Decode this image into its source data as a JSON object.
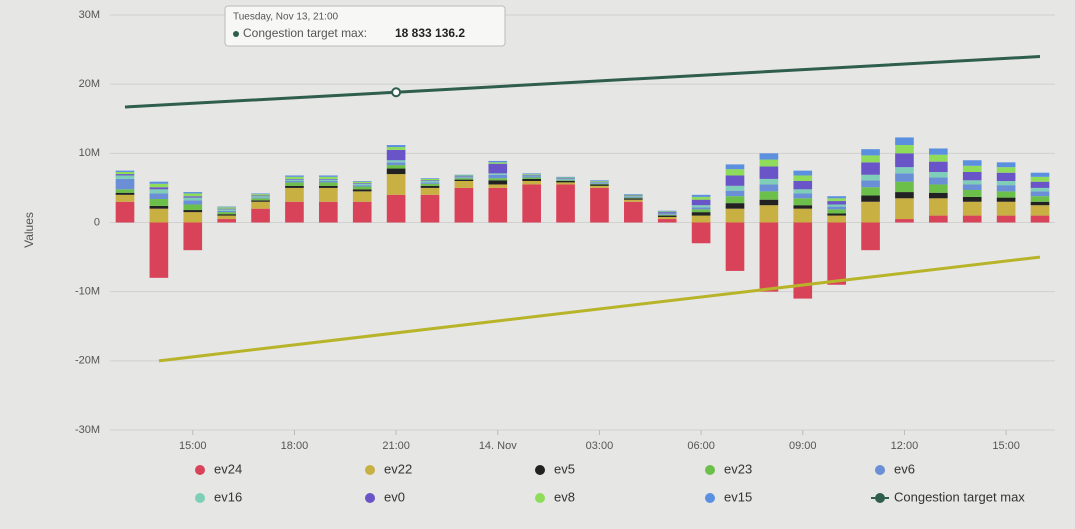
{
  "chart_data": {
    "type": "bar",
    "y_label": "Values",
    "x": [
      0,
      1,
      2,
      3,
      4,
      5,
      6,
      7,
      8,
      9,
      10,
      11,
      12,
      13,
      14,
      15,
      16,
      17,
      18,
      19,
      20,
      21,
      22,
      23,
      24,
      25,
      26,
      27
    ],
    "xlim": [
      0,
      27
    ],
    "xticks": [
      {
        "value": 2,
        "label": "15:00"
      },
      {
        "value": 5,
        "label": "18:00"
      },
      {
        "value": 8,
        "label": "21:00"
      },
      {
        "value": 11,
        "label": "14. Nov"
      },
      {
        "value": 14,
        "label": "03:00"
      },
      {
        "value": 17,
        "label": "06:00"
      },
      {
        "value": 20,
        "label": "09:00"
      },
      {
        "value": 23,
        "label": "12:00"
      },
      {
        "value": 26,
        "label": "15:00"
      }
    ],
    "ylim": [
      -30000000,
      30000000
    ],
    "yticks": [
      {
        "value": -30000000,
        "label": "-30M"
      },
      {
        "value": -20000000,
        "label": "-20M"
      },
      {
        "value": -10000000,
        "label": "-10M"
      },
      0,
      {
        "value": 10000000,
        "label": "10M"
      },
      {
        "value": 20000000,
        "label": "20M"
      },
      {
        "value": 30000000,
        "label": "30M"
      }
    ],
    "grid": true,
    "series": [
      {
        "name": "ev24",
        "color": "#d9435a",
        "values": [
          3000000,
          -8000000,
          -4000000,
          500000,
          2000000,
          3000000,
          3000000,
          3000000,
          4000000,
          4000000,
          5000000,
          5000000,
          5500000,
          5500000,
          5000000,
          3000000,
          500000,
          -3000000,
          -7000000,
          -10000000,
          -11000000,
          -9000000,
          -4000000,
          500000,
          1000000,
          1000000,
          1000000,
          1000000
        ]
      },
      {
        "name": "ev22",
        "color": "#c9b043",
        "values": [
          1000000,
          2000000,
          1500000,
          500000,
          1000000,
          2000000,
          2000000,
          1500000,
          3000000,
          1000000,
          1000000,
          500000,
          500000,
          300000,
          300000,
          300000,
          300000,
          1000000,
          2000000,
          2500000,
          2000000,
          1000000,
          3000000,
          3000000,
          2500000,
          2000000,
          2000000,
          1500000
        ]
      },
      {
        "name": "ev5",
        "color": "#222222",
        "values": [
          300000,
          400000,
          300000,
          200000,
          200000,
          300000,
          300000,
          300000,
          800000,
          300000,
          200000,
          600000,
          300000,
          200000,
          200000,
          200000,
          200000,
          500000,
          800000,
          800000,
          500000,
          300000,
          900000,
          900000,
          800000,
          700000,
          600000,
          500000
        ]
      },
      {
        "name": "ev23",
        "color": "#6cc04a",
        "values": [
          500000,
          1000000,
          800000,
          300000,
          300000,
          500000,
          500000,
          400000,
          500000,
          300000,
          200000,
          300000,
          200000,
          100000,
          100000,
          100000,
          100000,
          400000,
          1000000,
          1200000,
          1000000,
          600000,
          1200000,
          1500000,
          1200000,
          1000000,
          900000,
          800000
        ]
      },
      {
        "name": "ev6",
        "color": "#6a8fd6",
        "values": [
          1500000,
          800000,
          600000,
          200000,
          100000,
          200000,
          200000,
          200000,
          400000,
          200000,
          100000,
          500000,
          200000,
          100000,
          100000,
          100000,
          100000,
          300000,
          800000,
          1000000,
          700000,
          400000,
          1000000,
          1200000,
          1000000,
          800000,
          900000,
          700000
        ]
      },
      {
        "name": "ev16",
        "color": "#7fcfb8",
        "values": [
          500000,
          600000,
          400000,
          200000,
          200000,
          200000,
          200000,
          200000,
          300000,
          200000,
          100000,
          200000,
          100000,
          100000,
          100000,
          100000,
          100000,
          300000,
          700000,
          800000,
          600000,
          300000,
          800000,
          900000,
          800000,
          600000,
          600000,
          500000
        ]
      },
      {
        "name": "ev0",
        "color": "#6a55c8",
        "values": [
          200000,
          300000,
          200000,
          100000,
          100000,
          100000,
          100000,
          100000,
          1500000,
          100000,
          100000,
          1400000,
          100000,
          100000,
          100000,
          100000,
          200000,
          800000,
          1500000,
          1800000,
          1200000,
          500000,
          1800000,
          2000000,
          1500000,
          1200000,
          1200000,
          900000
        ]
      },
      {
        "name": "ev8",
        "color": "#8fdc5a",
        "values": [
          300000,
          500000,
          400000,
          200000,
          200000,
          300000,
          300000,
          200000,
          400000,
          200000,
          100000,
          200000,
          100000,
          100000,
          100000,
          100000,
          100000,
          400000,
          900000,
          1000000,
          800000,
          400000,
          1000000,
          1200000,
          1000000,
          900000,
          800000,
          700000
        ]
      },
      {
        "name": "ev15",
        "color": "#5b8fe0",
        "values": [
          200000,
          300000,
          200000,
          100000,
          100000,
          200000,
          200000,
          100000,
          300000,
          100000,
          100000,
          200000,
          100000,
          100000,
          100000,
          100000,
          100000,
          300000,
          700000,
          900000,
          700000,
          300000,
          900000,
          1100000,
          900000,
          800000,
          700000,
          600000
        ]
      },
      {
        "name": "Congestion target max",
        "type": "line",
        "color": "#2f5e4e",
        "x": [
          0,
          8,
          27
        ],
        "values": [
          16700000,
          18833136.2,
          24000000
        ]
      },
      {
        "type": "line",
        "color": "#b8b42a",
        "x": [
          1,
          27
        ],
        "values": [
          -20000000,
          -5000000
        ]
      }
    ],
    "tooltip": {
      "title": "Tuesday, Nov 13, 21:00",
      "label": "Congestion target max:",
      "value": "18 833 136.2"
    }
  }
}
